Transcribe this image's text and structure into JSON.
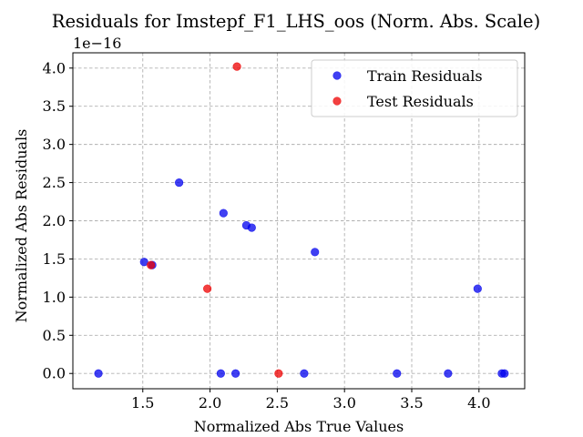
{
  "chart_data": {
    "type": "scatter",
    "title": "Residuals for Imstepf_F1_LHS_oos (Norm. Abs. Scale)",
    "xlabel": "Normalized Abs True Values",
    "ylabel": "Normalized Abs Residuals",
    "y_offset_label": "1e−16",
    "xlim": [
      0.98,
      4.34
    ],
    "ylim": [
      -0.2,
      4.2
    ],
    "x_ticks": [
      1.5,
      2.0,
      2.5,
      3.0,
      3.5,
      4.0
    ],
    "y_ticks": [
      0.0,
      0.5,
      1.0,
      1.5,
      2.0,
      2.5,
      3.0,
      3.5,
      4.0
    ],
    "grid": true,
    "grid_style": "dashed",
    "legend_position": "top-right",
    "series": [
      {
        "name": "Train Residuals",
        "color": "#0000ee",
        "points": [
          {
            "x": 1.17,
            "y": 0.0
          },
          {
            "x": 1.51,
            "y": 1.46
          },
          {
            "x": 1.57,
            "y": 1.42
          },
          {
            "x": 1.77,
            "y": 2.5
          },
          {
            "x": 2.08,
            "y": 0.0
          },
          {
            "x": 2.1,
            "y": 2.1
          },
          {
            "x": 2.19,
            "y": 0.0
          },
          {
            "x": 2.27,
            "y": 1.94
          },
          {
            "x": 2.31,
            "y": 1.91
          },
          {
            "x": 2.7,
            "y": 0.0
          },
          {
            "x": 2.78,
            "y": 1.59
          },
          {
            "x": 3.39,
            "y": 0.0
          },
          {
            "x": 3.77,
            "y": 0.0
          },
          {
            "x": 3.99,
            "y": 1.11
          },
          {
            "x": 4.17,
            "y": 0.0
          },
          {
            "x": 4.19,
            "y": 0.0
          }
        ]
      },
      {
        "name": "Test Residuals",
        "color": "#ee0000",
        "points": [
          {
            "x": 1.56,
            "y": 1.42
          },
          {
            "x": 1.98,
            "y": 1.11
          },
          {
            "x": 2.2,
            "y": 4.02
          },
          {
            "x": 2.51,
            "y": 0.0
          }
        ]
      }
    ]
  }
}
